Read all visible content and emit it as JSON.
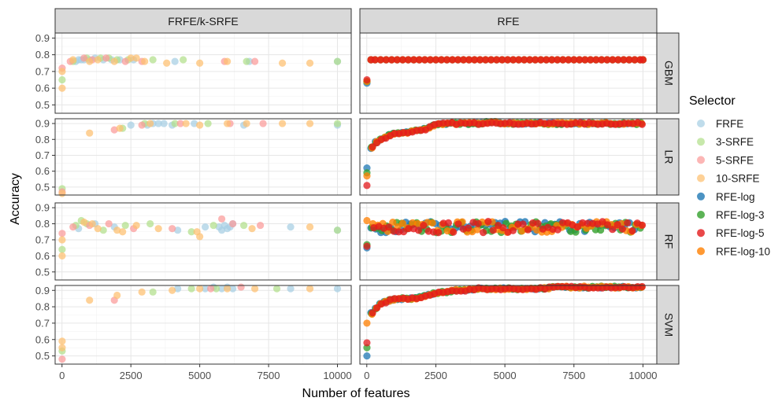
{
  "chart_data": {
    "type": "scatter",
    "facet_columns": [
      "FRFE/k-SRFE",
      "RFE"
    ],
    "facet_rows": [
      "GBM",
      "LR",
      "RF",
      "SVM"
    ],
    "xlabel": "Number of features",
    "ylabel": "Accuracy",
    "xlim": [
      -250,
      10500
    ],
    "ylim": [
      0.45,
      0.93
    ],
    "x_ticks": [
      0,
      2500,
      5000,
      7500,
      10000
    ],
    "x_tick_labels_left": [
      "0",
      "2500",
      "5000",
      "7500",
      "10000"
    ],
    "x_tick_labels_right": [
      "0",
      "2500",
      "5000",
      "7500",
      "10000"
    ],
    "y_ticks": [
      0.5,
      0.6,
      0.7,
      0.8,
      0.9
    ],
    "y_tick_labels": [
      "0.5",
      "0.6",
      "0.7",
      "0.8",
      "0.9"
    ],
    "grid": true,
    "legend": {
      "title": "Selector",
      "placement": "right",
      "entries": [
        {
          "name": "FRFE",
          "color": "#a6cee3"
        },
        {
          "name": "3-SRFE",
          "color": "#b2df8a"
        },
        {
          "name": "5-SRFE",
          "color": "#fb9a99"
        },
        {
          "name": "10-SRFE",
          "color": "#fdbf6f"
        },
        {
          "name": "RFE-log",
          "color": "#1f78b4"
        },
        {
          "name": "RFE-log-3",
          "color": "#33a02c"
        },
        {
          "name": "RFE-log-5",
          "color": "#e31a1c"
        },
        {
          "name": "RFE-log-10",
          "color": "#ff7f00"
        }
      ]
    },
    "panels": {
      "FRFE/k-SRFE": {
        "GBM": [
          {
            "series": "FRFE",
            "points": [
              [
                500,
                0.76
              ],
              [
                600,
                0.77
              ],
              [
                700,
                0.77
              ],
              [
                800,
                0.77
              ],
              [
                1000,
                0.77
              ],
              [
                1200,
                0.78
              ],
              [
                1500,
                0.77
              ],
              [
                1800,
                0.77
              ],
              [
                2100,
                0.77
              ],
              [
                2600,
                0.77
              ],
              [
                4100,
                0.76
              ],
              [
                6800,
                0.76
              ],
              [
                10000,
                0.76
              ]
            ]
          },
          {
            "series": "3-SRFE",
            "points": [
              [
                5,
                0.65
              ],
              [
                400,
                0.76
              ],
              [
                900,
                0.78
              ],
              [
                1400,
                0.78
              ],
              [
                1700,
                0.78
              ],
              [
                2000,
                0.77
              ],
              [
                2400,
                0.77
              ],
              [
                3300,
                0.77
              ],
              [
                4400,
                0.77
              ],
              [
                6700,
                0.76
              ],
              [
                10000,
                0.76
              ]
            ]
          },
          {
            "series": "5-SRFE",
            "points": [
              [
                5,
                0.72
              ],
              [
                300,
                0.76
              ],
              [
                800,
                0.78
              ],
              [
                1100,
                0.77
              ],
              [
                1600,
                0.78
              ],
              [
                2300,
                0.76
              ],
              [
                2900,
                0.76
              ],
              [
                5900,
                0.76
              ],
              [
                7000,
                0.76
              ]
            ]
          },
          {
            "series": "10-SRFE",
            "points": [
              [
                5,
                0.6
              ],
              [
                5,
                0.7
              ],
              [
                400,
                0.77
              ],
              [
                1000,
                0.76
              ],
              [
                1300,
                0.77
              ],
              [
                1900,
                0.76
              ],
              [
                2500,
                0.78
              ],
              [
                2700,
                0.78
              ],
              [
                3000,
                0.76
              ],
              [
                3800,
                0.75
              ],
              [
                5000,
                0.75
              ],
              [
                6000,
                0.76
              ],
              [
                8000,
                0.75
              ],
              [
                9000,
                0.75
              ]
            ]
          }
        ],
        "LR": [
          {
            "series": "FRFE",
            "points": [
              [
                2500,
                0.89
              ],
              [
                3100,
                0.89
              ],
              [
                3300,
                0.9
              ],
              [
                3500,
                0.9
              ],
              [
                3700,
                0.9
              ],
              [
                4000,
                0.89
              ],
              [
                4800,
                0.9
              ],
              [
                6600,
                0.89
              ],
              [
                10000,
                0.89
              ]
            ]
          },
          {
            "series": "3-SRFE",
            "points": [
              [
                5,
                0.49
              ],
              [
                2200,
                0.87
              ],
              [
                3000,
                0.9
              ],
              [
                4100,
                0.9
              ],
              [
                5300,
                0.9
              ],
              [
                10000,
                0.9
              ]
            ]
          },
          {
            "series": "5-SRFE",
            "points": [
              [
                5,
                0.47
              ],
              [
                1900,
                0.86
              ],
              [
                2900,
                0.89
              ],
              [
                4300,
                0.9
              ],
              [
                6100,
                0.9
              ],
              [
                7300,
                0.9
              ]
            ]
          },
          {
            "series": "10-SRFE",
            "points": [
              [
                5,
                0.46
              ],
              [
                1000,
                0.84
              ],
              [
                2100,
                0.87
              ],
              [
                3200,
                0.9
              ],
              [
                4500,
                0.9
              ],
              [
                5000,
                0.89
              ],
              [
                6000,
                0.9
              ],
              [
                6700,
                0.9
              ],
              [
                8000,
                0.9
              ],
              [
                9000,
                0.9
              ]
            ]
          }
        ],
        "RF": [
          {
            "series": "FRFE",
            "points": [
              [
                600,
                0.77
              ],
              [
                1200,
                0.8
              ],
              [
                1900,
                0.78
              ],
              [
                4200,
                0.76
              ],
              [
                5200,
                0.78
              ],
              [
                5700,
                0.78
              ],
              [
                5800,
                0.76
              ],
              [
                5900,
                0.79
              ],
              [
                6000,
                0.77
              ],
              [
                6100,
                0.78
              ],
              [
                6200,
                0.8
              ],
              [
                8300,
                0.78
              ],
              [
                10000,
                0.76
              ]
            ]
          },
          {
            "series": "3-SRFE",
            "points": [
              [
                5,
                0.64
              ],
              [
                500,
                0.79
              ],
              [
                700,
                0.82
              ],
              [
                900,
                0.8
              ],
              [
                1500,
                0.76
              ],
              [
                2300,
                0.79
              ],
              [
                3200,
                0.8
              ],
              [
                4700,
                0.75
              ],
              [
                5500,
                0.79
              ],
              [
                6600,
                0.79
              ],
              [
                10000,
                0.76
              ]
            ]
          },
          {
            "series": "5-SRFE",
            "points": [
              [
                5,
                0.74
              ],
              [
                400,
                0.78
              ],
              [
                1000,
                0.79
              ],
              [
                1700,
                0.8
              ],
              [
                2600,
                0.77
              ],
              [
                4000,
                0.77
              ],
              [
                5800,
                0.83
              ],
              [
                6200,
                0.8
              ],
              [
                7200,
                0.79
              ]
            ]
          },
          {
            "series": "10-SRFE",
            "points": [
              [
                5,
                0.6
              ],
              [
                5,
                0.7
              ],
              [
                800,
                0.81
              ],
              [
                1100,
                0.8
              ],
              [
                1300,
                0.77
              ],
              [
                2000,
                0.76
              ],
              [
                2200,
                0.75
              ],
              [
                2700,
                0.79
              ],
              [
                3500,
                0.77
              ],
              [
                4900,
                0.75
              ],
              [
                5000,
                0.72
              ],
              [
                6900,
                0.77
              ],
              [
                9000,
                0.78
              ]
            ]
          }
        ],
        "SVM": [
          {
            "series": "FRFE",
            "points": [
              [
                4200,
                0.91
              ],
              [
                5200,
                0.91
              ],
              [
                5500,
                0.92
              ],
              [
                5800,
                0.91
              ],
              [
                6000,
                0.92
              ],
              [
                6200,
                0.91
              ],
              [
                8300,
                0.91
              ],
              [
                10000,
                0.91
              ]
            ]
          },
          {
            "series": "3-SRFE",
            "points": [
              [
                5,
                0.53
              ],
              [
                3300,
                0.89
              ],
              [
                4700,
                0.91
              ],
              [
                5600,
                0.91
              ],
              [
                7800,
                0.91
              ]
            ]
          },
          {
            "series": "5-SRFE",
            "points": [
              [
                5,
                0.48
              ],
              [
                1900,
                0.84
              ],
              [
                5400,
                0.91
              ],
              [
                6500,
                0.92
              ]
            ]
          },
          {
            "series": "10-SRFE",
            "points": [
              [
                5,
                0.59
              ],
              [
                5,
                0.55
              ],
              [
                1000,
                0.84
              ],
              [
                2000,
                0.87
              ],
              [
                2900,
                0.89
              ],
              [
                4000,
                0.9
              ],
              [
                5000,
                0.91
              ],
              [
                6000,
                0.91
              ],
              [
                7000,
                0.91
              ],
              [
                9000,
                0.91
              ]
            ]
          }
        ]
      },
      "RFE": {
        "GBM": {
          "start_values": {
            "RFE-log": 0.63,
            "RFE-log-3": 0.64,
            "RFE-log-5": 0.65,
            "RFE-log-10": 0.64
          },
          "points_x": [
            150,
            300,
            500,
            700,
            900,
            1100,
            1300,
            1500,
            1700,
            1900,
            2100,
            2300,
            2500,
            2700,
            2900,
            3100,
            3300,
            3500,
            3700,
            3900,
            4100,
            4300,
            4500,
            4700,
            4900,
            5100,
            5300,
            5500,
            5700,
            5900,
            6100,
            6300,
            6500,
            6700,
            6900,
            7100,
            7300,
            7500,
            7700,
            7900,
            8100,
            8300,
            8500,
            8700,
            8900,
            9100,
            9300,
            9500,
            9700,
            9900,
            10000
          ],
          "plateau": 0.77
        },
        "LR": {
          "start_values": {
            "RFE-log": 0.62,
            "RFE-log-3": 0.59,
            "RFE-log-5": 0.51,
            "RFE-log-10": 0.57
          },
          "curve": [
            [
              150,
              0.75
            ],
            [
              300,
              0.78
            ],
            [
              500,
              0.8
            ],
            [
              700,
              0.82
            ],
            [
              1000,
              0.84
            ],
            [
              1300,
              0.84
            ],
            [
              1600,
              0.85
            ],
            [
              2000,
              0.86
            ],
            [
              2400,
              0.89
            ],
            [
              2800,
              0.9
            ],
            [
              3200,
              0.9
            ],
            [
              3600,
              0.9
            ],
            [
              4000,
              0.9
            ],
            [
              4500,
              0.91
            ],
            [
              5000,
              0.9
            ],
            [
              6000,
              0.9
            ],
            [
              7000,
              0.9
            ],
            [
              8000,
              0.9
            ],
            [
              9000,
              0.9
            ],
            [
              10000,
              0.9
            ]
          ]
        },
        "RF": {
          "start_values": {
            "RFE-log": 0.65,
            "RFE-log-3": 0.67,
            "RFE-log-5": 0.66,
            "RFE-log-10": 0.82
          },
          "mean": 0.78,
          "spread": 0.035
        },
        "SVM": {
          "start_values": {
            "RFE-log": 0.5,
            "RFE-log-3": 0.55,
            "RFE-log-5": 0.58,
            "RFE-log-10": 0.7
          },
          "curve": [
            [
              150,
              0.76
            ],
            [
              300,
              0.79
            ],
            [
              500,
              0.82
            ],
            [
              800,
              0.84
            ],
            [
              1200,
              0.85
            ],
            [
              1600,
              0.85
            ],
            [
              2000,
              0.86
            ],
            [
              2400,
              0.88
            ],
            [
              2800,
              0.89
            ],
            [
              3200,
              0.9
            ],
            [
              3600,
              0.9
            ],
            [
              4000,
              0.91
            ],
            [
              5000,
              0.91
            ],
            [
              6000,
              0.91
            ],
            [
              7000,
              0.92
            ],
            [
              8000,
              0.92
            ],
            [
              9000,
              0.92
            ],
            [
              10000,
              0.92
            ]
          ]
        }
      }
    }
  }
}
